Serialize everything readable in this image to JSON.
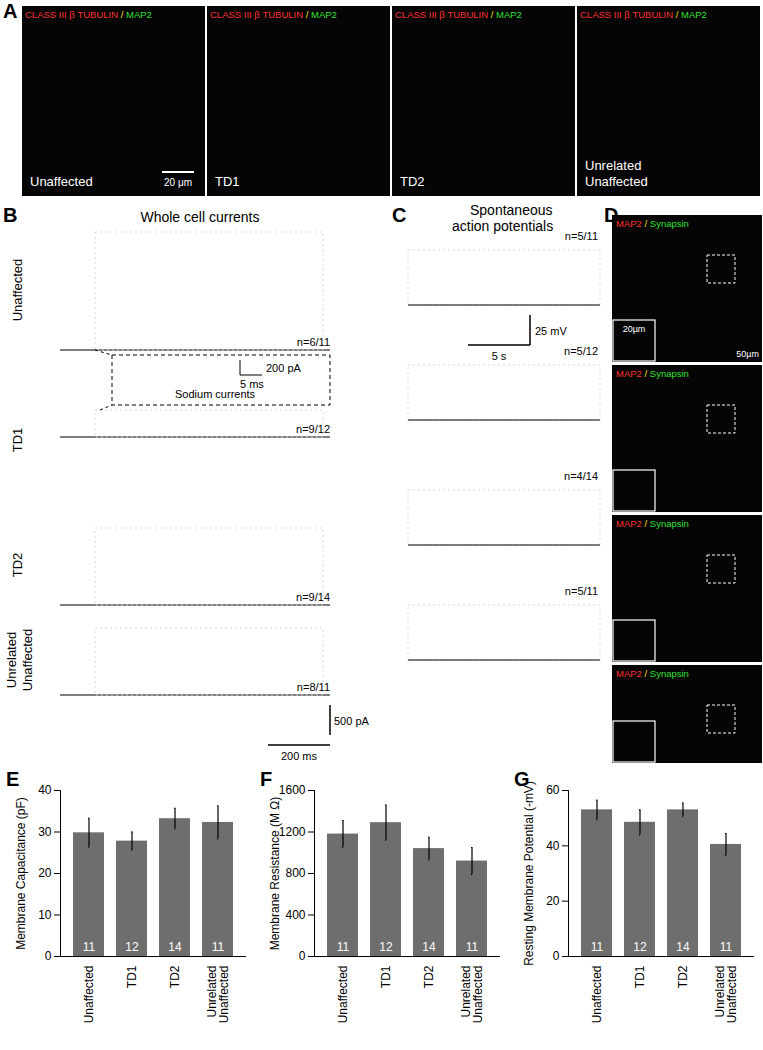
{
  "figure": {
    "panel_A": {
      "panel_label": "A",
      "stain": [
        "CLASS III β TUBULIN",
        "/",
        "MAP2"
      ],
      "images": [
        "Unaffected",
        "TD1",
        "TD2",
        "Unrelated Unaffected"
      ],
      "scale_bar": "20 μm"
    },
    "panel_B": {
      "panel_label": "B",
      "title": "Whole cell currents",
      "rows": [
        {
          "name": "Unaffected",
          "n": "n=6/11"
        },
        {
          "name": "TD1",
          "n": "n=9/12"
        },
        {
          "name": "TD2",
          "n": "n=9/14"
        },
        {
          "name": "Unrelated Unaffected",
          "n": "n=8/11"
        }
      ],
      "inset": {
        "title": "Sodium currents",
        "scale_bars": [
          "200 pA",
          "5 ms"
        ]
      },
      "scale_bars": [
        "500 pA",
        "200 ms"
      ]
    },
    "panel_C": {
      "panel_label": "C",
      "title": "Spontaneous action potentials",
      "n": [
        "n=5/11",
        "n=5/12",
        "n=4/14",
        "n=5/11"
      ],
      "scale_bars": [
        "25 mV",
        "5 s"
      ]
    },
    "panel_D": {
      "panel_label": "D",
      "images": [
        {
          "stain": [
            "MAP2",
            "/",
            "Synapsin"
          ],
          "scale_bars": [
            "20µm",
            "50µm"
          ]
        },
        {
          "stain": [
            "MAP2",
            "/",
            "Synapsin"
          ]
        },
        {
          "stain": [
            "MAP2",
            "/",
            "Synapsin"
          ]
        },
        {
          "stain": [
            "MAP2",
            "/",
            "Synapsin"
          ]
        }
      ]
    }
  },
  "chart_data": [
    {
      "panel_label": "E",
      "type": "bar",
      "ylabel": "Membrane Capacitance (pF)",
      "categories": [
        "Unaffected",
        "TD1",
        "TD2",
        "Unrelated Unaffected"
      ],
      "values": [
        29.8,
        27.8,
        33.2,
        32.3
      ],
      "errors": [
        3.5,
        2.2,
        2.5,
        4.0
      ],
      "n": [
        11,
        12,
        14,
        11
      ],
      "color": "#6e6e6e",
      "ylim": [
        0,
        40
      ],
      "yticks": [
        0,
        10,
        20,
        30,
        40
      ]
    },
    {
      "panel_label": "F",
      "type": "bar",
      "ylabel": "Membrane Resistance (M Ω)",
      "categories": [
        "Unaffected",
        "TD1",
        "TD2",
        "Unrelated Unaffected"
      ],
      "values": [
        1180,
        1290,
        1040,
        920
      ],
      "errors": [
        130,
        170,
        110,
        130
      ],
      "n": [
        11,
        12,
        14,
        11
      ],
      "color": "#6e6e6e",
      "ylim": [
        0,
        1600
      ],
      "yticks": [
        0,
        400,
        800,
        1200,
        1600
      ]
    },
    {
      "panel_label": "G",
      "type": "bar",
      "ylabel": "Resting Membrane Potential (-mV)",
      "categories": [
        "Unaffected",
        "TD1",
        "TD2",
        "Unrelated Unaffected"
      ],
      "values": [
        53,
        48.5,
        53,
        40.5
      ],
      "errors": [
        3.5,
        4.5,
        2.5,
        4.0
      ],
      "n": [
        11,
        12,
        14,
        11
      ],
      "color": "#6e6e6e",
      "ylim": [
        0,
        60
      ],
      "yticks": [
        0,
        20,
        40,
        60
      ]
    }
  ]
}
